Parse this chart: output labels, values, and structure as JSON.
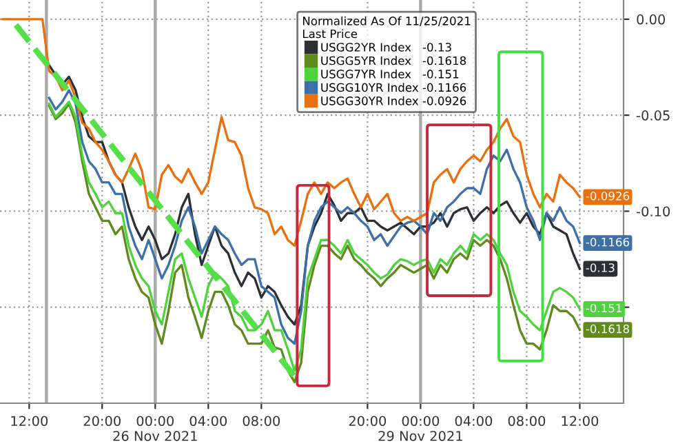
{
  "chart_data": {
    "type": "line",
    "categories": [
      null,
      null,
      null,
      null,
      "12:00",
      null,
      null,
      null,
      null,
      null,
      null,
      null,
      null,
      null,
      null,
      "20:00",
      null,
      null,
      null,
      null,
      null,
      null,
      null,
      "00:00\n26 Nov 2021",
      null,
      null,
      null,
      null,
      null,
      null,
      null,
      "04:00",
      null,
      null,
      null,
      null,
      null,
      null,
      null,
      "08:00",
      null,
      null,
      null,
      null,
      null,
      null,
      null,
      null,
      null,
      null,
      null,
      null,
      null,
      null,
      null,
      "20:00",
      null,
      null,
      null,
      null,
      null,
      null,
      null,
      "00:00\n29 Nov 2021",
      null,
      null,
      null,
      null,
      null,
      null,
      null,
      "04:00",
      null,
      null,
      null,
      null,
      null,
      null,
      null,
      "08:00",
      null,
      null,
      null,
      null,
      null,
      null,
      null,
      "12:00",
      null,
      null,
      null,
      null,
      null,
      null
    ],
    "series": [
      {
        "name": "USGG2YR Index   -0.13",
        "color": "#2b2f36",
        "values": [
          null,
          null,
          null,
          null,
          null,
          null,
          null,
          -0.024,
          -0.029,
          -0.034,
          -0.03,
          -0.037,
          -0.051,
          -0.061,
          -0.064,
          -0.064,
          -0.074,
          -0.081,
          -0.085,
          -0.098,
          -0.108,
          -0.115,
          -0.108,
          -0.115,
          -0.125,
          -0.122,
          -0.112,
          -0.098,
          -0.091,
          -0.112,
          -0.128,
          -0.118,
          -0.108,
          -0.118,
          -0.122,
          -0.132,
          -0.139,
          -0.132,
          -0.135,
          -0.145,
          -0.139,
          -0.142,
          -0.149,
          -0.155,
          -0.159,
          -0.149,
          -0.118,
          -0.108,
          -0.101,
          -0.091,
          -0.097,
          -0.105,
          -0.101,
          -0.101,
          -0.098,
          -0.105,
          -0.105,
          -0.108,
          -0.11,
          -0.108,
          -0.106,
          -0.109,
          -0.112,
          -0.108,
          -0.108,
          -0.106,
          -0.101,
          -0.108,
          -0.101,
          -0.099,
          -0.098,
          -0.105,
          -0.101,
          -0.098,
          -0.101,
          -0.097,
          -0.095,
          -0.101,
          -0.106,
          -0.101,
          -0.108,
          -0.112,
          -0.101,
          -0.108,
          -0.11,
          -0.112,
          -0.122,
          -0.13,
          null,
          null,
          null,
          null,
          null,
          null
        ],
        "value_labels": [
          null,
          null,
          null,
          null,
          null,
          null,
          null,
          null,
          null,
          null,
          null,
          null,
          null,
          null,
          null,
          null,
          null,
          null,
          null,
          null,
          null,
          null,
          null,
          null,
          null,
          null,
          null,
          null,
          null,
          null,
          null,
          null,
          null,
          null,
          null,
          null,
          null,
          null,
          null,
          null,
          null,
          null,
          null,
          null,
          null,
          null,
          null,
          null,
          null,
          null,
          null,
          null,
          null,
          null,
          null,
          null,
          null,
          null,
          null,
          null,
          null,
          null,
          null,
          null,
          null,
          null,
          null,
          null,
          null,
          null,
          null,
          null,
          null,
          null,
          null,
          null,
          null,
          null,
          null,
          null,
          null,
          null,
          null,
          null,
          null,
          null,
          null,
          "-0.13",
          null,
          null,
          null,
          null,
          null,
          null
        ]
      },
      {
        "name": "USGG5YR Index   -0.1618",
        "color": "#5f8a1e",
        "values": [
          null,
          null,
          null,
          null,
          null,
          null,
          null,
          -0.045,
          -0.052,
          -0.049,
          -0.044,
          -0.054,
          -0.074,
          -0.091,
          -0.098,
          -0.105,
          -0.105,
          -0.112,
          -0.108,
          -0.125,
          -0.135,
          -0.142,
          -0.145,
          -0.159,
          -0.169,
          -0.152,
          -0.132,
          -0.128,
          -0.145,
          -0.155,
          -0.166,
          -0.152,
          -0.142,
          -0.142,
          -0.149,
          -0.159,
          -0.162,
          -0.169,
          -0.169,
          -0.169,
          -0.162,
          -0.171,
          -0.172,
          -0.183,
          -0.189,
          -0.179,
          -0.142,
          -0.128,
          -0.118,
          -0.118,
          -0.122,
          -0.125,
          -0.118,
          -0.125,
          -0.128,
          -0.132,
          -0.135,
          -0.139,
          -0.135,
          -0.132,
          -0.128,
          -0.13,
          -0.132,
          -0.13,
          -0.128,
          -0.135,
          -0.128,
          -0.132,
          -0.125,
          -0.122,
          -0.125,
          -0.115,
          -0.118,
          -0.115,
          -0.118,
          -0.125,
          -0.135,
          -0.149,
          -0.162,
          -0.169,
          -0.169,
          -0.172,
          -0.162,
          -0.149,
          -0.152,
          -0.152,
          -0.155,
          -0.1618,
          null,
          null,
          null,
          null,
          null,
          null
        ],
        "value_labels": [
          null,
          null,
          null,
          null,
          null,
          null,
          null,
          null,
          null,
          null,
          null,
          null,
          null,
          null,
          null,
          null,
          null,
          null,
          null,
          null,
          null,
          null,
          null,
          null,
          null,
          null,
          null,
          null,
          null,
          null,
          null,
          null,
          null,
          null,
          null,
          null,
          null,
          null,
          null,
          null,
          null,
          null,
          null,
          null,
          null,
          null,
          null,
          null,
          null,
          null,
          null,
          null,
          null,
          null,
          null,
          null,
          null,
          null,
          null,
          null,
          null,
          null,
          null,
          null,
          null,
          null,
          null,
          null,
          null,
          null,
          null,
          null,
          null,
          null,
          null,
          null,
          null,
          null,
          null,
          null,
          null,
          null,
          null,
          null,
          null,
          null,
          null,
          "-0.1618",
          null,
          null,
          null,
          null,
          null,
          null
        ]
      },
      {
        "name": "USGG7YR Index   -0.151",
        "color": "#4fd33c",
        "values": [
          null,
          null,
          null,
          null,
          null,
          null,
          null,
          -0.044,
          -0.051,
          -0.047,
          -0.043,
          -0.051,
          -0.071,
          -0.085,
          -0.091,
          -0.098,
          -0.095,
          -0.101,
          -0.101,
          -0.118,
          -0.128,
          -0.135,
          -0.139,
          -0.152,
          -0.159,
          -0.142,
          -0.125,
          -0.122,
          -0.135,
          -0.145,
          -0.155,
          -0.139,
          -0.132,
          -0.135,
          -0.139,
          -0.152,
          -0.155,
          -0.162,
          -0.162,
          -0.159,
          -0.152,
          -0.162,
          -0.162,
          -0.172,
          -0.183,
          -0.172,
          -0.135,
          -0.125,
          -0.115,
          -0.115,
          -0.118,
          -0.122,
          -0.115,
          -0.122,
          -0.125,
          -0.128,
          -0.132,
          -0.135,
          -0.133,
          -0.128,
          -0.125,
          -0.126,
          -0.128,
          -0.126,
          -0.125,
          -0.132,
          -0.125,
          -0.128,
          -0.122,
          -0.118,
          -0.122,
          -0.112,
          -0.115,
          -0.112,
          -0.115,
          -0.122,
          -0.128,
          -0.142,
          -0.152,
          -0.155,
          -0.159,
          -0.162,
          -0.152,
          -0.142,
          -0.14,
          -0.142,
          -0.145,
          -0.151,
          null,
          null,
          null,
          null,
          null,
          null
        ],
        "value_labels": [
          null,
          null,
          null,
          null,
          null,
          null,
          null,
          null,
          null,
          null,
          null,
          null,
          null,
          null,
          null,
          null,
          null,
          null,
          null,
          null,
          null,
          null,
          null,
          null,
          null,
          null,
          null,
          null,
          null,
          null,
          null,
          null,
          null,
          null,
          null,
          null,
          null,
          null,
          null,
          null,
          null,
          null,
          null,
          null,
          null,
          null,
          null,
          null,
          null,
          null,
          null,
          null,
          null,
          null,
          null,
          null,
          null,
          null,
          null,
          null,
          null,
          null,
          null,
          null,
          null,
          null,
          null,
          null,
          null,
          null,
          null,
          null,
          null,
          null,
          null,
          null,
          null,
          null,
          null,
          null,
          null,
          null,
          null,
          null,
          null,
          null,
          null,
          "-0.151",
          null,
          null,
          null,
          null,
          null,
          null
        ]
      },
      {
        "name": "USGG10YR Index -0.1166",
        "color": "#3d6fa8",
        "values": [
          null,
          null,
          null,
          null,
          null,
          null,
          null,
          -0.041,
          -0.047,
          -0.043,
          -0.037,
          -0.044,
          -0.064,
          -0.074,
          -0.078,
          -0.085,
          -0.085,
          -0.091,
          -0.091,
          -0.108,
          -0.118,
          -0.125,
          -0.115,
          -0.125,
          -0.135,
          -0.128,
          -0.118,
          -0.105,
          -0.098,
          -0.108,
          -0.122,
          -0.115,
          -0.108,
          -0.112,
          -0.115,
          -0.122,
          -0.128,
          -0.125,
          -0.125,
          -0.139,
          -0.142,
          -0.145,
          -0.159,
          -0.166,
          -0.169,
          -0.152,
          -0.118,
          -0.105,
          -0.098,
          -0.095,
          -0.098,
          -0.101,
          -0.098,
          -0.101,
          -0.105,
          -0.108,
          -0.115,
          -0.112,
          -0.118,
          -0.113,
          -0.108,
          -0.106,
          -0.105,
          -0.108,
          -0.112,
          -0.101,
          -0.105,
          -0.098,
          -0.095,
          -0.091,
          -0.088,
          -0.088,
          -0.091,
          -0.078,
          -0.071,
          -0.074,
          -0.068,
          -0.078,
          -0.085,
          -0.098,
          -0.105,
          -0.115,
          -0.101,
          -0.105,
          -0.098,
          -0.105,
          -0.108,
          -0.1166,
          null,
          null,
          null,
          null,
          null,
          null
        ],
        "value_labels": [
          null,
          null,
          null,
          null,
          null,
          null,
          null,
          null,
          null,
          null,
          null,
          null,
          null,
          null,
          null,
          null,
          null,
          null,
          null,
          null,
          null,
          null,
          null,
          null,
          null,
          null,
          null,
          null,
          null,
          null,
          null,
          null,
          null,
          null,
          null,
          null,
          null,
          null,
          null,
          null,
          null,
          null,
          null,
          null,
          null,
          null,
          null,
          null,
          null,
          null,
          null,
          null,
          null,
          null,
          null,
          null,
          null,
          null,
          null,
          null,
          null,
          null,
          null,
          null,
          null,
          null,
          null,
          null,
          null,
          null,
          null,
          null,
          null,
          null,
          null,
          null,
          null,
          null,
          null,
          null,
          null,
          null,
          null,
          null,
          null,
          null,
          null,
          "-0.1166",
          null,
          null,
          null,
          null,
          null,
          null
        ]
      },
      {
        "name": "USGG30YR Index -0.0926",
        "color": "#e8700f",
        "values": [
          0,
          0,
          0,
          0,
          0,
          0,
          0,
          -0.027,
          -0.03,
          -0.037,
          -0.032,
          -0.041,
          -0.054,
          -0.057,
          -0.064,
          -0.068,
          -0.074,
          -0.081,
          -0.085,
          -0.078,
          -0.07,
          -0.079,
          -0.098,
          -0.099,
          -0.081,
          -0.076,
          -0.082,
          -0.085,
          -0.078,
          -0.085,
          -0.091,
          -0.085,
          -0.068,
          -0.051,
          -0.063,
          -0.064,
          -0.071,
          -0.088,
          -0.098,
          -0.099,
          -0.101,
          -0.112,
          -0.108,
          -0.115,
          -0.118,
          -0.105,
          -0.091,
          -0.085,
          -0.091,
          -0.085,
          -0.088,
          -0.085,
          -0.083,
          -0.091,
          -0.098,
          -0.091,
          -0.099,
          -0.095,
          -0.091,
          -0.101,
          -0.105,
          -0.103,
          -0.105,
          -0.103,
          -0.101,
          -0.085,
          -0.081,
          -0.078,
          -0.085,
          -0.078,
          -0.074,
          -0.071,
          -0.074,
          -0.068,
          -0.064,
          -0.057,
          -0.052,
          -0.061,
          -0.064,
          -0.081,
          -0.091,
          -0.098,
          -0.091,
          -0.095,
          -0.081,
          -0.085,
          -0.088,
          -0.0926,
          null,
          null,
          null,
          null,
          null,
          null
        ],
        "value_labels": [
          null,
          null,
          null,
          null,
          null,
          null,
          null,
          null,
          null,
          null,
          null,
          null,
          null,
          null,
          null,
          null,
          null,
          null,
          null,
          null,
          null,
          null,
          null,
          null,
          null,
          null,
          null,
          null,
          null,
          null,
          null,
          null,
          null,
          null,
          null,
          null,
          null,
          null,
          null,
          null,
          null,
          null,
          null,
          null,
          null,
          null,
          null,
          null,
          null,
          null,
          null,
          null,
          null,
          null,
          null,
          null,
          null,
          null,
          null,
          null,
          null,
          null,
          null,
          null,
          null,
          null,
          null,
          null,
          null,
          null,
          null,
          null,
          null,
          null,
          null,
          null,
          null,
          null,
          null,
          null,
          null,
          null,
          null,
          null,
          null,
          null,
          null,
          "-0.0926",
          null,
          null,
          null,
          null,
          null,
          null
        ]
      },
      {
        "color": "#55e04a",
        "line_style": "dashed",
        "values": [
          null,
          null,
          -0.003,
          null,
          null,
          null,
          null,
          null,
          null,
          null,
          null,
          null,
          null,
          null,
          null,
          null,
          null,
          null,
          null,
          null,
          null,
          null,
          null,
          null,
          null,
          null,
          null,
          null,
          null,
          null,
          null,
          null,
          null,
          null,
          null,
          null,
          null,
          null,
          null,
          null,
          null,
          null,
          null,
          null,
          -0.186,
          null,
          null,
          null,
          null,
          null,
          null,
          null,
          null,
          null,
          null,
          null,
          null,
          null,
          null,
          null,
          null,
          null,
          null,
          null,
          null,
          null,
          null,
          null,
          null,
          null,
          null,
          null,
          null,
          null,
          null,
          null,
          null,
          null,
          null,
          null,
          null,
          null,
          null,
          null,
          null,
          null,
          null,
          null,
          null,
          null,
          null,
          null,
          null,
          null
        ]
      }
    ],
    "legend_title": "Normalized As Of 11/25/2021\nLast Price",
    "legend": "top",
    "ylim": [
      -0.2,
      0.01
    ],
    "yticks": [
      {
        "value": 0,
        "label": "0.00"
      },
      {
        "value": -0.05,
        "label": "-0.05"
      },
      {
        "value": -0.1,
        "label": "-0.10"
      },
      {
        "value": -0.15,
        "label": null
      }
    ],
    "grid": true,
    "marker": "none",
    "line_style": "solid"
  }
}
